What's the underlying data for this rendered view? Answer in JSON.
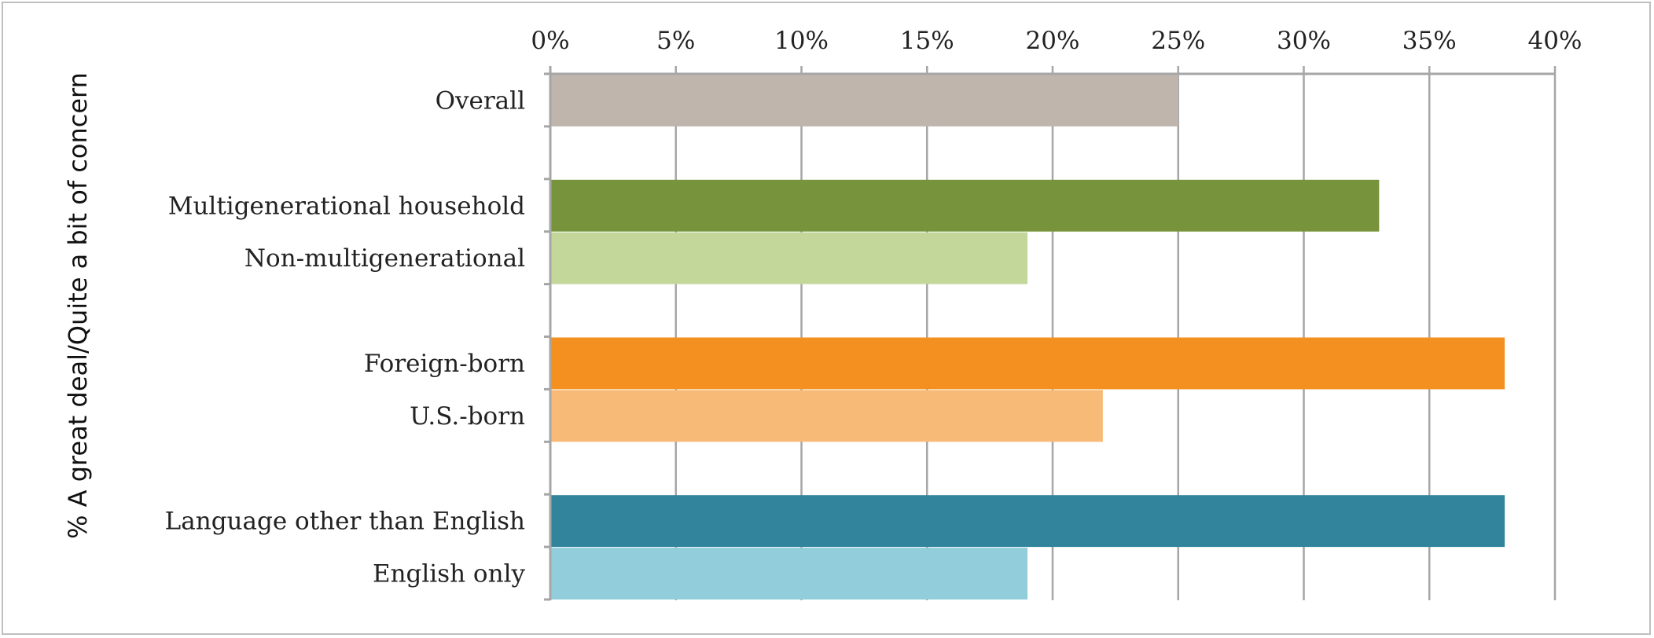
{
  "chart_data": {
    "type": "bar",
    "orientation": "horizontal",
    "title": "",
    "xlabel": "",
    "ylabel": "% A great deal/Quite a bit of concern",
    "xlim": [
      0,
      40
    ],
    "x_ticks": [
      "0%",
      "5%",
      "10%",
      "15%",
      "20%",
      "25%",
      "30%",
      "35%",
      "40%"
    ],
    "x_axis_position": "top",
    "grid": "vertical",
    "legend": "none",
    "categories": [
      "Overall",
      "Multigenerational household",
      "Non-multigenerational",
      "Foreign-born",
      "U.S.-born",
      "Language other than English",
      "English only"
    ],
    "values": [
      25,
      33,
      19,
      38,
      22,
      38,
      19
    ],
    "colors": [
      "#bfb5ad",
      "#77933c",
      "#c4d79b",
      "#f39020",
      "#f8bb77",
      "#31849b",
      "#92cddc"
    ]
  }
}
